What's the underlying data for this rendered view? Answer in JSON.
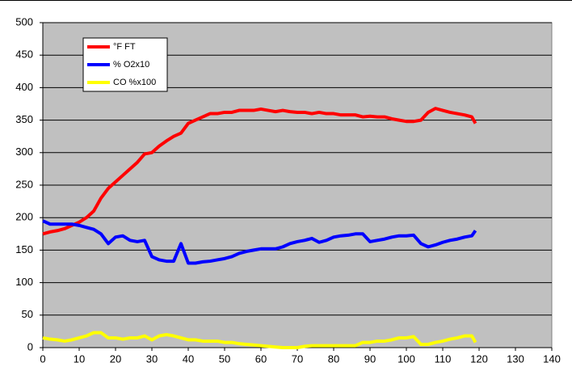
{
  "chart_data": {
    "type": "line",
    "x": [
      0,
      2,
      4,
      6,
      8,
      10,
      12,
      14,
      16,
      18,
      20,
      22,
      24,
      26,
      28,
      30,
      32,
      34,
      36,
      38,
      40,
      42,
      44,
      46,
      48,
      50,
      52,
      54,
      56,
      58,
      60,
      62,
      64,
      66,
      68,
      70,
      72,
      74,
      76,
      78,
      80,
      82,
      84,
      86,
      88,
      90,
      92,
      94,
      96,
      98,
      100,
      102,
      104,
      106,
      108,
      110,
      112,
      114,
      116,
      118,
      119
    ],
    "series": [
      {
        "name": "°F FT",
        "color": "#ff0000",
        "values": [
          175,
          178,
          180,
          183,
          188,
          193,
          200,
          210,
          230,
          245,
          255,
          265,
          275,
          285,
          298,
          300,
          310,
          318,
          325,
          330,
          345,
          350,
          355,
          360,
          360,
          362,
          362,
          365,
          365,
          365,
          367,
          365,
          363,
          365,
          363,
          362,
          362,
          360,
          362,
          360,
          360,
          358,
          358,
          358,
          355,
          356,
          355,
          355,
          352,
          350,
          348,
          348,
          350,
          362,
          368,
          365,
          362,
          360,
          358,
          355,
          345
        ]
      },
      {
        "name": "% O2x10",
        "color": "#0000ff",
        "values": [
          195,
          190,
          190,
          190,
          190,
          188,
          185,
          182,
          175,
          160,
          170,
          172,
          165,
          163,
          165,
          140,
          135,
          133,
          133,
          160,
          130,
          130,
          132,
          133,
          135,
          137,
          140,
          145,
          148,
          150,
          152,
          152,
          152,
          155,
          160,
          163,
          165,
          168,
          162,
          165,
          170,
          172,
          173,
          175,
          175,
          163,
          165,
          167,
          170,
          172,
          172,
          173,
          160,
          155,
          158,
          162,
          165,
          167,
          170,
          172,
          180
        ]
      },
      {
        "name": "CO %x100",
        "color": "#ffff00",
        "values": [
          15,
          13,
          12,
          10,
          12,
          15,
          18,
          23,
          23,
          15,
          15,
          13,
          15,
          15,
          18,
          12,
          18,
          20,
          18,
          15,
          12,
          12,
          10,
          10,
          10,
          8,
          8,
          6,
          5,
          4,
          3,
          2,
          1,
          0,
          0,
          0,
          2,
          3,
          3,
          3,
          3,
          3,
          3,
          3,
          8,
          8,
          10,
          10,
          12,
          15,
          15,
          17,
          5,
          5,
          8,
          10,
          13,
          15,
          18,
          18,
          8
        ]
      }
    ],
    "xlim": [
      0,
      140
    ],
    "xticks": [
      0,
      10,
      20,
      30,
      40,
      50,
      60,
      70,
      80,
      90,
      100,
      110,
      120,
      130,
      140
    ],
    "ylim": [
      0,
      500
    ],
    "yticks": [
      0,
      50,
      100,
      150,
      200,
      250,
      300,
      350,
      400,
      450,
      500
    ],
    "grid": true,
    "background": "#c0c0c0"
  }
}
